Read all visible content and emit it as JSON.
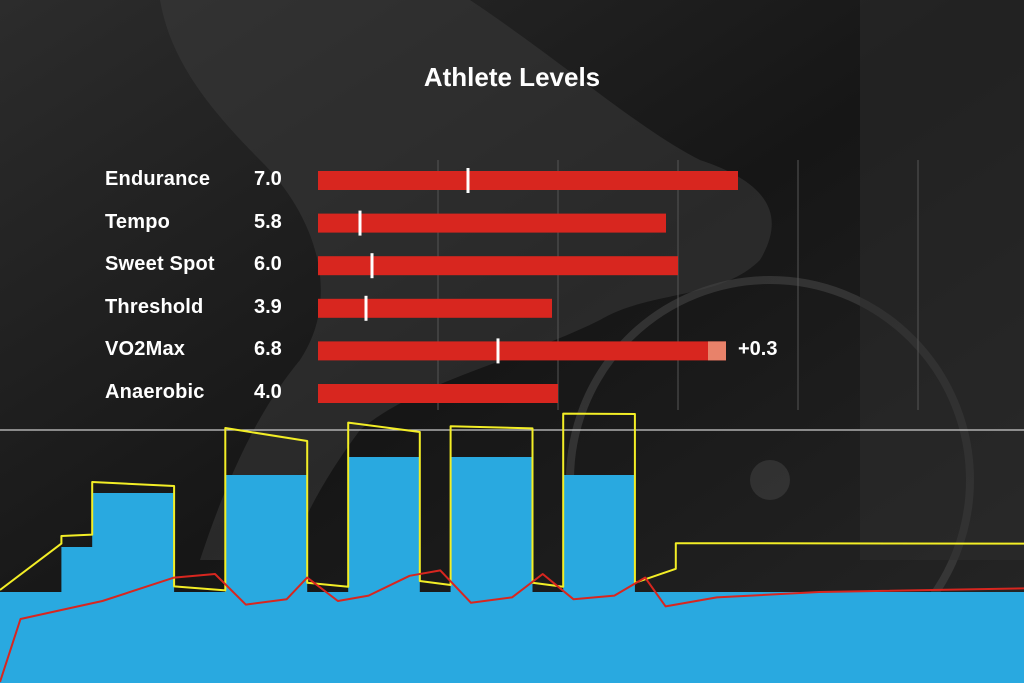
{
  "colors": {
    "bar": "#d8261f",
    "bar_gain": "#e8826a",
    "marker": "#ffffff",
    "power": "#f3ee26",
    "heart_rate": "#d8261f",
    "target": "#29a9e0",
    "ftp_line": "#cccccc"
  },
  "chart_data": [
    {
      "type": "bar",
      "orientation": "horizontal",
      "title": "Athlete Levels",
      "xlim": [
        0,
        10
      ],
      "grid": true,
      "categories": [
        "Endurance",
        "Tempo",
        "Sweet Spot",
        "Threshold",
        "VO2Max",
        "Anaerobic"
      ],
      "value_labels": [
        "7.0",
        "5.8",
        "6.0",
        "3.9",
        "6.8",
        "4.0"
      ],
      "values": [
        7.0,
        5.8,
        6.0,
        3.9,
        6.8,
        4.0
      ],
      "gain": [
        0,
        0,
        0,
        0,
        0.3,
        0
      ],
      "gain_labels": [
        "",
        "",
        "",
        "",
        "+0.3",
        ""
      ],
      "markers": [
        2.5,
        0.7,
        0.9,
        0.8,
        3.0,
        null
      ]
    },
    {
      "type": "area",
      "x": [
        0,
        6,
        6,
        9,
        9,
        17,
        17,
        22,
        22,
        30,
        30,
        34,
        34,
        41,
        41,
        44,
        44,
        52,
        52,
        55,
        55,
        62,
        62,
        66,
        66,
        100
      ],
      "series": [
        {
          "role": "target",
          "values": [
            2,
            2,
            4.5,
            4.5,
            7.5,
            7.5,
            2,
            2,
            8.5,
            8.5,
            2,
            2,
            9.5,
            9.5,
            2,
            2,
            9.5,
            9.5,
            2,
            2,
            8.5,
            8.5,
            2,
            2,
            2,
            2
          ]
        },
        {
          "role": "power",
          "values": [
            2,
            4.8,
            5,
            5.3,
            8,
            8,
            2.2,
            2.2,
            11,
            10.5,
            2.4,
            2.4,
            11.3,
            11,
            2.5,
            2.5,
            11.1,
            11.2,
            2.4,
            2.4,
            11.8,
            12,
            2.4,
            3.4,
            4.6,
            4.8
          ]
        },
        {
          "role": "heart_rate",
          "x": [
            0,
            2,
            6,
            10,
            17,
            21,
            24,
            28,
            30,
            33,
            36,
            40,
            43,
            46,
            50,
            53,
            56,
            60,
            63,
            65,
            70,
            80,
            100
          ],
          "values": [
            -3,
            0.5,
            1,
            1.5,
            2.8,
            3.0,
            1.3,
            1.6,
            2.8,
            1.5,
            1.8,
            2.9,
            3.2,
            1.4,
            1.7,
            3.0,
            1.6,
            1.8,
            2.8,
            1.2,
            1.7,
            2.0,
            2.2
          ]
        }
      ],
      "reference_line": 11
    }
  ]
}
